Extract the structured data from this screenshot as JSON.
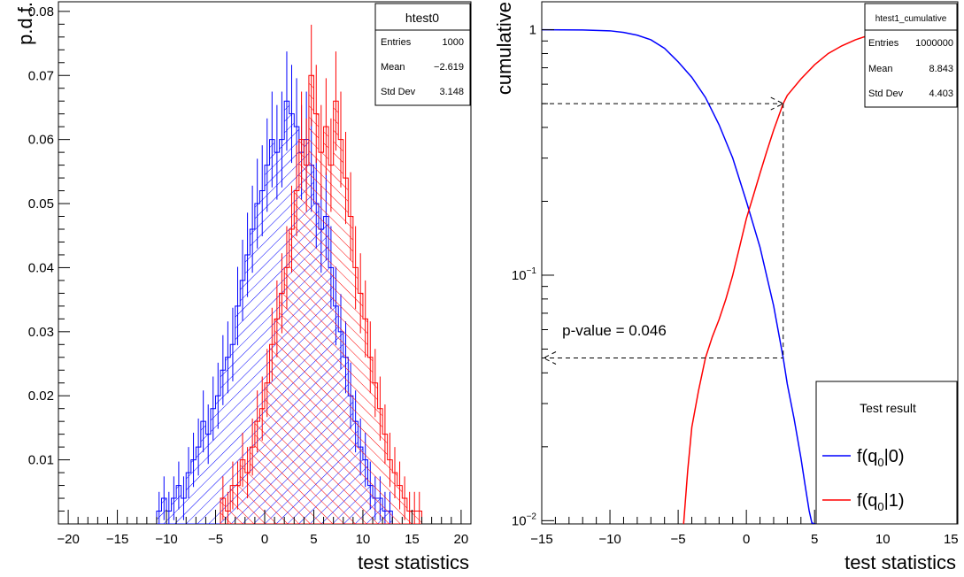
{
  "chart_data": [
    {
      "type": "histogram",
      "xlabel": "test statistics",
      "ylabel": "p.d.f.",
      "xlim": [
        -21,
        21
      ],
      "ylim": [
        0,
        0.0815
      ],
      "x_ticks": [
        -20,
        -15,
        -10,
        -5,
        0,
        5,
        10,
        15,
        20
      ],
      "x_tick_labels": [
        "−20",
        "−15",
        "−10",
        "−5",
        "0",
        "5",
        "10",
        "15",
        "20"
      ],
      "y_ticks": [
        0.01,
        0.02,
        0.03,
        0.04,
        0.05,
        0.06,
        0.07,
        0.08
      ],
      "y_tick_labels": [
        "0.01",
        "0.02",
        "0.03",
        "0.04",
        "0.05",
        "0.06",
        "0.07",
        "0.08"
      ],
      "grid": false,
      "legend": "none",
      "bin_width": 0.5,
      "stats_box": {
        "title": "htest0",
        "rows": [
          {
            "label": "Entries",
            "value": "1000"
          },
          {
            "label": "Mean",
            "value": "−2.619"
          },
          {
            "label": "Std Dev",
            "value": "3.148"
          }
        ]
      },
      "series": [
        {
          "color": "#0000ff",
          "fill": "hatch-backslash",
          "x_start": -11.0,
          "values": [
            0.002,
            0.004,
            0.002,
            0.004,
            0.006,
            0.004,
            0.008,
            0.01,
            0.012,
            0.016,
            0.014,
            0.018,
            0.02,
            0.024,
            0.026,
            0.028,
            0.034,
            0.038,
            0.042,
            0.046,
            0.05,
            0.052,
            0.056,
            0.06,
            0.058,
            0.06,
            0.066,
            0.064,
            0.062,
            0.058,
            0.06,
            0.056,
            0.05,
            0.046,
            0.048,
            0.04,
            0.034,
            0.03,
            0.026,
            0.02,
            0.016,
            0.012,
            0.01,
            0.006,
            0.004,
            0.004,
            0.002,
            0.002
          ]
        },
        {
          "color": "#ff0000",
          "fill": "hatch-slash",
          "x_start": -4.5,
          "values": [
            0.004,
            0.002,
            0.006,
            0.006,
            0.01,
            0.008,
            0.012,
            0.016,
            0.018,
            0.022,
            0.028,
            0.032,
            0.036,
            0.04,
            0.046,
            0.052,
            0.06,
            0.056,
            0.07,
            0.064,
            0.058,
            0.062,
            0.056,
            0.066,
            0.06,
            0.054,
            0.048,
            0.04,
            0.036,
            0.032,
            0.026,
            0.022,
            0.018,
            0.014,
            0.01,
            0.008,
            0.006,
            0.004,
            0.002,
            0.002,
            0.002
          ]
        }
      ]
    },
    {
      "type": "line",
      "xlabel": "test statistics",
      "ylabel": "cumulative",
      "y_scale": "log",
      "xlim": [
        -15,
        15.5
      ],
      "ylim": [
        0.0097,
        1.3
      ],
      "x_ticks": [
        -15,
        -10,
        -5,
        0,
        5,
        10,
        15
      ],
      "x_tick_labels": [
        "−15",
        "−10",
        "−5",
        "0",
        "5",
        "10",
        "15"
      ],
      "y_ticks": [
        0.01,
        0.1,
        1
      ],
      "y_tick_labels": [
        {
          "base": "10",
          "exp": "−2"
        },
        {
          "base": "10",
          "exp": "−1"
        },
        {
          "base": "1",
          "exp": ""
        }
      ],
      "grid": false,
      "stats_box": {
        "title": "htest1_cumulative",
        "rows": [
          {
            "label": "Entries",
            "value": "1000000"
          },
          {
            "label": "Mean",
            "value": "8.843"
          },
          {
            "label": "Std Dev",
            "value": "4.403"
          }
        ]
      },
      "legend": {
        "position": "bottom-right",
        "title": "Test result",
        "entries": [
          {
            "color": "#0000ff",
            "main": "f(q",
            "sub": "0",
            "tail": "|0)"
          },
          {
            "color": "#ff0000",
            "main": "f(q",
            "sub": "0",
            "tail": "|1)"
          }
        ]
      },
      "series": [
        {
          "color": "#0000ff",
          "x": [
            -15,
            -12,
            -10,
            -9,
            -8,
            -7,
            -6,
            -5,
            -4,
            -3,
            -2,
            -1,
            0,
            1,
            2,
            2.7,
            3,
            3.5,
            4,
            4.3,
            4.6,
            4.8,
            5.0,
            5.2
          ],
          "y": [
            1.0,
            0.998,
            0.99,
            0.975,
            0.95,
            0.91,
            0.84,
            0.74,
            0.64,
            0.53,
            0.41,
            0.3,
            0.2,
            0.13,
            0.075,
            0.046,
            0.036,
            0.026,
            0.018,
            0.014,
            0.011,
            0.0098,
            0.0097,
            0.0097
          ]
        },
        {
          "color": "#ff0000",
          "x": [
            -4.6,
            -4.3,
            -4.0,
            -3.5,
            -3.0,
            -2.5,
            -2.0,
            -1.5,
            -1.0,
            -0.5,
            0,
            0.5,
            1,
            1.5,
            2,
            2.7,
            3,
            4,
            5,
            6,
            7,
            8,
            9,
            10,
            12,
            15
          ],
          "y": [
            0.0097,
            0.016,
            0.024,
            0.034,
            0.046,
            0.056,
            0.066,
            0.08,
            0.1,
            0.13,
            0.17,
            0.21,
            0.26,
            0.32,
            0.39,
            0.5,
            0.54,
            0.63,
            0.72,
            0.8,
            0.86,
            0.91,
            0.95,
            0.975,
            0.99,
            1.0
          ]
        }
      ],
      "annotations": [
        {
          "type": "dashed-arrow",
          "from": [
            2.7,
            0.5
          ],
          "to": [
            -15,
            0.5
          ]
        },
        {
          "type": "dashed-drop",
          "x": 2.7,
          "y_top": 0.5,
          "y_bottom": 0.046
        },
        {
          "type": "dashed-arrow",
          "from": [
            2.7,
            0.046
          ],
          "to": [
            -15,
            0.046
          ]
        },
        {
          "type": "label",
          "text": "p-value = 0.046",
          "anchor": [
            -13.5,
            0.054
          ]
        }
      ]
    }
  ]
}
